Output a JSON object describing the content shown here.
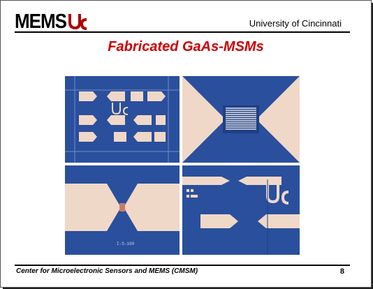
{
  "header": {
    "logo_text": "MEMS",
    "university": "University of Cincinnati"
  },
  "slide": {
    "title": "Fabricated GaAs-MSMs"
  },
  "photo": {
    "device_label": "I-S-100",
    "substrate_color": "#2a4f9c",
    "pad_color": "#f0d8c8"
  },
  "footer": {
    "center_name": "Center for Microelectronic Sensors and MEMS (CMSM)",
    "page_number": "8"
  }
}
